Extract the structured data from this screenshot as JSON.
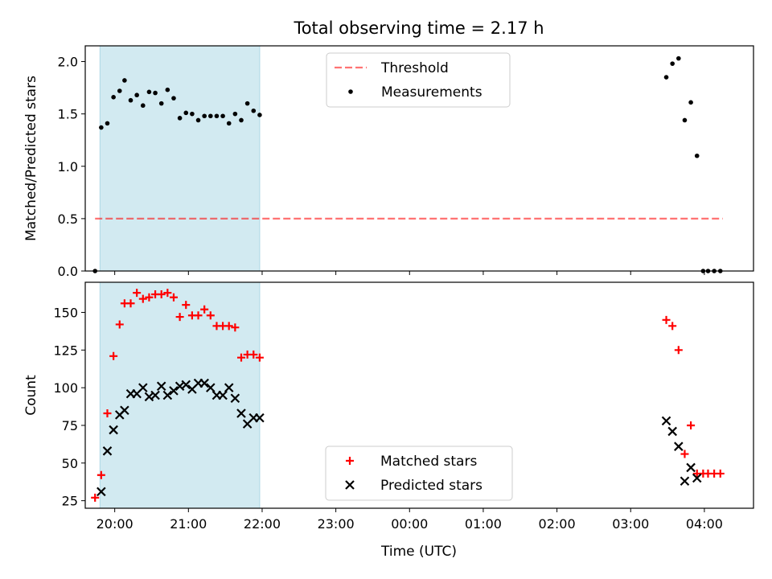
{
  "figure": {
    "title": "Total observing time = 2.17 h",
    "xlabel": "Time (UTC)"
  },
  "colors": {
    "shade": "#add8e6",
    "threshold": "#ff0000",
    "measurements": "#000000",
    "matched": "#ff0000",
    "predicted": "#000000"
  },
  "chart_data": [
    {
      "type": "scatter",
      "panel": "top",
      "ylabel": "Matched/Predicted stars",
      "ylim": [
        0,
        2.15
      ],
      "yticks": [
        0.0,
        0.5,
        1.0,
        1.5,
        2.0
      ],
      "ytick_labels": [
        "0.0",
        "0.5",
        "1.0",
        "1.5",
        "2.0"
      ],
      "xlim": [
        "19:36",
        "04:40"
      ],
      "shaded_interval": [
        "19:48",
        "21:58"
      ],
      "legend": {
        "placement": "top-center",
        "entries": [
          {
            "label": "Threshold",
            "style": "dashed-line"
          },
          {
            "label": "Measurements",
            "style": "dot"
          }
        ]
      },
      "threshold": {
        "name": "Threshold",
        "y": 0.5,
        "x_start": "19:44",
        "x_end": "04:15"
      },
      "series": [
        {
          "name": "Measurements",
          "x": [
            "19:44",
            "19:49",
            "19:54",
            "19:59",
            "20:04",
            "20:08",
            "20:13",
            "20:18",
            "20:23",
            "20:28",
            "20:33",
            "20:38",
            "20:43",
            "20:48",
            "20:53",
            "20:58",
            "21:03",
            "21:08",
            "21:13",
            "21:18",
            "21:23",
            "21:28",
            "21:33",
            "21:38",
            "21:43",
            "21:48",
            "21:53",
            "21:58",
            "03:29",
            "03:34",
            "03:39",
            "03:44",
            "03:49",
            "03:54",
            "03:59",
            "04:03",
            "04:08",
            "04:13"
          ],
          "y": [
            0.0,
            1.37,
            1.41,
            1.66,
            1.72,
            1.82,
            1.63,
            1.68,
            1.58,
            1.71,
            1.7,
            1.6,
            1.73,
            1.65,
            1.46,
            1.51,
            1.5,
            1.44,
            1.48,
            1.48,
            1.48,
            1.48,
            1.41,
            1.5,
            1.44,
            1.6,
            1.53,
            1.49,
            1.85,
            1.98,
            2.03,
            1.44,
            1.61,
            1.1,
            0.0,
            0.0,
            0.0,
            0.0
          ]
        }
      ]
    },
    {
      "type": "scatter",
      "panel": "bottom",
      "ylabel": "Count",
      "ylim": [
        20,
        170
      ],
      "yticks": [
        25,
        50,
        75,
        100,
        125,
        150
      ],
      "ytick_labels": [
        "25",
        "50",
        "75",
        "100",
        "125",
        "150"
      ],
      "xlim": [
        "19:36",
        "04:40"
      ],
      "xticks": [
        "20:00",
        "21:00",
        "22:00",
        "23:00",
        "00:00",
        "01:00",
        "02:00",
        "03:00",
        "04:00"
      ],
      "shaded_interval": [
        "19:48",
        "21:58"
      ],
      "legend": {
        "placement": "lower-center",
        "entries": [
          {
            "label": "Matched stars",
            "style": "plus"
          },
          {
            "label": "Predicted stars",
            "style": "x"
          }
        ]
      },
      "series": [
        {
          "name": "Matched stars",
          "x": [
            "19:44",
            "19:49",
            "19:54",
            "19:59",
            "20:04",
            "20:08",
            "20:13",
            "20:18",
            "20:23",
            "20:28",
            "20:33",
            "20:38",
            "20:43",
            "20:48",
            "20:53",
            "20:58",
            "21:03",
            "21:08",
            "21:13",
            "21:18",
            "21:23",
            "21:28",
            "21:33",
            "21:38",
            "21:43",
            "21:48",
            "21:53",
            "21:58",
            "03:29",
            "03:34",
            "03:39",
            "03:44",
            "03:49",
            "03:54",
            "03:59",
            "04:03",
            "04:08",
            "04:13"
          ],
          "y": [
            27,
            42,
            83,
            121,
            142,
            156,
            156,
            163,
            159,
            160,
            162,
            162,
            163,
            160,
            147,
            155,
            148,
            148,
            152,
            148,
            141,
            141,
            141,
            140,
            120,
            122,
            122,
            120,
            145,
            141,
            125,
            56,
            75,
            43,
            43,
            43,
            43,
            43
          ]
        },
        {
          "name": "Predicted stars",
          "x": [
            "19:49",
            "19:54",
            "19:59",
            "20:04",
            "20:08",
            "20:13",
            "20:18",
            "20:23",
            "20:28",
            "20:33",
            "20:38",
            "20:43",
            "20:48",
            "20:53",
            "20:58",
            "21:03",
            "21:08",
            "21:13",
            "21:18",
            "21:23",
            "21:28",
            "21:33",
            "21:38",
            "21:43",
            "21:48",
            "21:53",
            "21:58",
            "03:29",
            "03:34",
            "03:39",
            "03:44",
            "03:49",
            "03:54"
          ],
          "y": [
            31,
            58,
            72,
            82,
            85,
            96,
            96,
            100,
            94,
            95,
            101,
            95,
            98,
            101,
            102,
            99,
            103,
            103,
            100,
            95,
            95,
            100,
            93,
            83,
            76,
            80,
            80,
            78,
            71,
            61,
            38,
            47,
            40
          ]
        }
      ]
    }
  ]
}
